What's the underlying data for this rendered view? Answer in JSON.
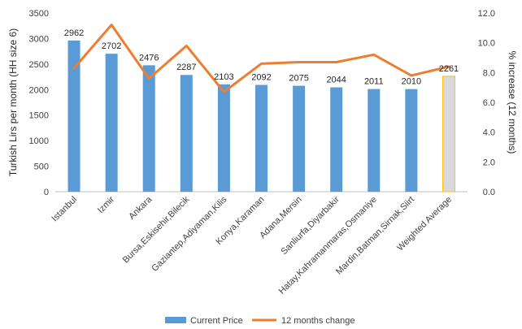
{
  "chart_data": {
    "type": "bar",
    "categories": [
      "Istanbul",
      "Izmir",
      "Ankara",
      "Bursa,Eskisehir,Bilecik",
      "Gaziantep,Adiyaman,Kilis",
      "Konya,Karaman",
      "Adana,Mersin",
      "Sanliurfa,Diyarbakir",
      "Hatay,Kahramanmaras,Osmaniye",
      "Mardin,Batman,Sirnak,Siirt",
      "Weighted Average"
    ],
    "series": [
      {
        "name": "Current Price",
        "type": "bar",
        "axis": "left",
        "values": [
          2962,
          2702,
          2476,
          2287,
          2103,
          2092,
          2075,
          2044,
          2011,
          2010,
          2261
        ],
        "color": "#5b9bd5",
        "highlight_color": "#d9d9d9",
        "highlight_border": "#ffc000"
      },
      {
        "name": "12 months change",
        "type": "line",
        "axis": "right",
        "values": [
          8.3,
          11.2,
          7.6,
          9.8,
          6.7,
          8.6,
          8.7,
          8.7,
          9.2,
          7.8,
          8.4
        ],
        "color": "#ed7d31"
      }
    ],
    "ylabel_left": "Turkish Lirs per month (HH size 6)",
    "ylabel_right": "% increase (12 months)",
    "ylim_left": [
      0,
      3500
    ],
    "yticks_left": [
      "0",
      "500",
      "1000",
      "1500",
      "2000",
      "2500",
      "3000",
      "3500"
    ],
    "ylim_right": [
      0,
      12
    ],
    "yticks_right": [
      "0.0",
      "2.0",
      "4.0",
      "6.0",
      "8.0",
      "10.0",
      "12.0"
    ],
    "data_labels": [
      "2962",
      "2702",
      "2476",
      "2287",
      "2103",
      "2092",
      "2075",
      "2044",
      "2011",
      "2010",
      "2261"
    ],
    "legend_position": "bottom",
    "grid": false
  }
}
